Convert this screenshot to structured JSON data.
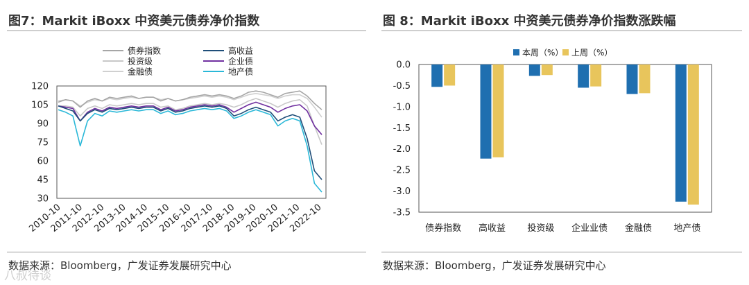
{
  "left_panel": {
    "title": "图7：Markit iBoxx 中资美元债券净价指数",
    "source": "数据来源：Bloomberg，广发证券发展研究中心"
  },
  "right_panel": {
    "title": "图 8：Markit iBoxx 中资美元债券净价指数涨跌幅",
    "source": "数据来源：Bloomberg，广发证券发展研究中心"
  },
  "watermark": "八叔待谈",
  "colors": {
    "债券指数": "#a6a6a6",
    "高收益": "#1f4e79",
    "投资级": "#c8c8c8",
    "企业债": "#7030a0",
    "金融债": "#d0d0d0",
    "地产债": "#2ab8d8",
    "本周": "#1f6fb0",
    "上周": "#e8c55c"
  },
  "chart_data": [
    {
      "type": "line",
      "title": "Markit iBoxx 中资美元债券净价指数",
      "x_ticks": [
        "2010-10",
        "2011-10",
        "2012-10",
        "2013-10",
        "2014-10",
        "2015-10",
        "2016-10",
        "2017-10",
        "2018-10",
        "2019-10",
        "2020-10",
        "2021-10",
        "2022-10"
      ],
      "ylim": [
        30,
        120
      ],
      "y_ticks": [
        30,
        45,
        60,
        75,
        90,
        105,
        120
      ],
      "legend_position": "top-center",
      "series": [
        {
          "name": "债券指数",
          "values": [
            107,
            109,
            108,
            103,
            108,
            110,
            108,
            111,
            110,
            111,
            112,
            110,
            111,
            111,
            108,
            110,
            108,
            109,
            111,
            112,
            113,
            112,
            113,
            112,
            110,
            112,
            115,
            116,
            115,
            113,
            111,
            114,
            115,
            116,
            112,
            106,
            101
          ]
        },
        {
          "name": "高收益",
          "values": [
            104,
            102,
            100,
            92,
            98,
            101,
            99,
            102,
            101,
            102,
            103,
            102,
            103,
            103,
            100,
            102,
            99,
            100,
            102,
            103,
            104,
            103,
            104,
            102,
            96,
            98,
            101,
            103,
            101,
            99,
            92,
            95,
            97,
            95,
            78,
            52,
            45
          ]
        },
        {
          "name": "投资级",
          "values": [
            104,
            104,
            103,
            96,
            102,
            104,
            102,
            105,
            104,
            105,
            106,
            105,
            106,
            106,
            103,
            104,
            101,
            102,
            104,
            105,
            106,
            105,
            106,
            105,
            103,
            105,
            108,
            110,
            108,
            106,
            103,
            106,
            108,
            109,
            104,
            88,
            73
          ]
        },
        {
          "name": "企业债",
          "values": [
            104,
            103,
            102,
            92,
            99,
            102,
            100,
            103,
            102,
            103,
            104,
            103,
            104,
            104,
            101,
            103,
            100,
            101,
            103,
            104,
            105,
            104,
            105,
            103,
            99,
            102,
            105,
            107,
            105,
            103,
            99,
            102,
            104,
            105,
            100,
            88,
            81
          ]
        },
        {
          "name": "金融债",
          "values": [
            108,
            109,
            108,
            104,
            107,
            109,
            108,
            110,
            109,
            110,
            111,
            110,
            111,
            111,
            109,
            110,
            108,
            109,
            110,
            111,
            112,
            111,
            112,
            111,
            109,
            111,
            113,
            114,
            113,
            112,
            110,
            112,
            113,
            113,
            110,
            103,
            95
          ]
        },
        {
          "name": "地产债",
          "values": [
            101,
            99,
            96,
            72,
            92,
            98,
            96,
            100,
            99,
            100,
            101,
            100,
            101,
            101,
            98,
            100,
            97,
            98,
            100,
            101,
            102,
            101,
            102,
            100,
            94,
            96,
            99,
            101,
            99,
            97,
            88,
            92,
            94,
            92,
            72,
            42,
            35
          ]
        }
      ]
    },
    {
      "type": "bar",
      "title": "Markit iBoxx 中资美元债券净价指数涨跌幅",
      "categories": [
        "债券指数",
        "高收益",
        "投资级",
        "企业业债",
        "金融债",
        "地产债"
      ],
      "ylim": [
        -3.5,
        0.0
      ],
      "y_ticks": [
        "0.0",
        "-0.5",
        "-1.0",
        "-1.5",
        "-2.0",
        "-2.5",
        "-3.0",
        "-3.5"
      ],
      "legend_position": "top-center",
      "series": [
        {
          "name": "本周（%）",
          "values": [
            -0.53,
            -2.23,
            -0.27,
            -0.55,
            -0.7,
            -3.25
          ]
        },
        {
          "name": "上周（%）",
          "values": [
            -0.5,
            -2.2,
            -0.25,
            -0.52,
            -0.68,
            -3.32
          ]
        }
      ]
    }
  ]
}
